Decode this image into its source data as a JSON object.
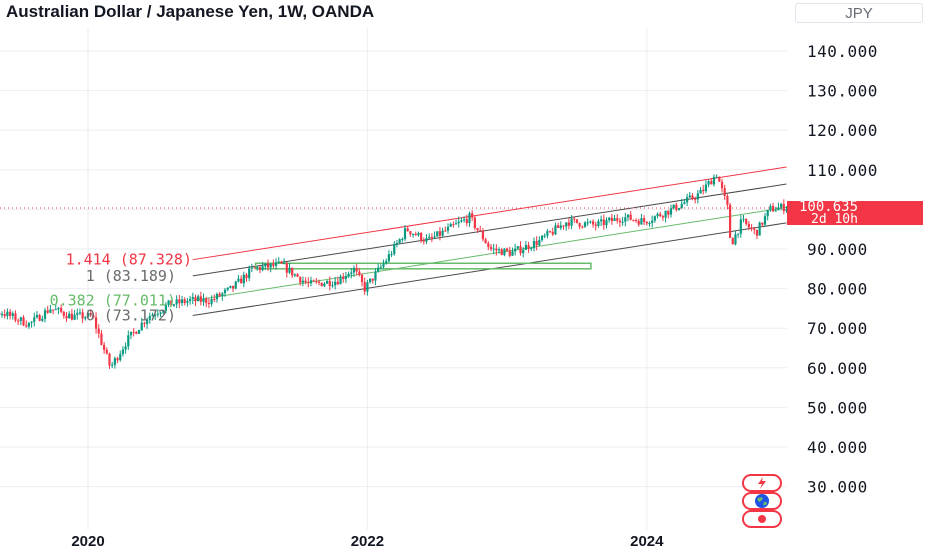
{
  "header": {
    "title": "Australian Dollar / Japanese Yen, 1W, OANDA",
    "currency": "JPY"
  },
  "price_tag": {
    "price": "100.635",
    "countdown": "2d 10h"
  },
  "colors": {
    "up": "#089981",
    "down": "#f23645",
    "channel": "#4a4a4a",
    "fib_upper": "#f23645",
    "fib_mid": "#6b6b6b",
    "fib_lower": "#66bb6a",
    "grid": "#eceef2",
    "axis_text": "#131722"
  },
  "side_icons": [
    "flash-icon",
    "earth-icon",
    "record-icon"
  ],
  "fib_labels": [
    {
      "text": "1.414 (87.328)",
      "color": "#f23645"
    },
    {
      "text": "1 (83.189)",
      "color": "#6b6b6b"
    },
    {
      "text": "0.382 (77.011)",
      "color": "#66bb6a"
    },
    {
      "text": "0 (73.172)",
      "color": "#6b6b6b"
    }
  ],
  "chart_data": {
    "type": "candlestick",
    "symbol": "AUD/JPY",
    "interval": "1W",
    "source": "OANDA",
    "y_axis": {
      "ticks": [
        "140.000",
        "130.000",
        "120.000",
        "110.000",
        "100.000",
        "90.000",
        "80.000",
        "70.000",
        "60.000",
        "50.000",
        "40.000",
        "30.000"
      ],
      "ylim": [
        25,
        148
      ]
    },
    "x_axis": {
      "ticks": [
        "2020",
        "2022",
        "2024"
      ],
      "xlim": [
        2019.0,
        2025.1
      ]
    },
    "current_price": 100.635,
    "grid": true,
    "trend_path": [
      [
        2019.0,
        76
      ],
      [
        2019.2,
        73
      ],
      [
        2019.4,
        74
      ],
      [
        2019.6,
        71
      ],
      [
        2019.75,
        75
      ],
      [
        2019.9,
        73
      ],
      [
        2020.05,
        73
      ],
      [
        2020.18,
        60
      ],
      [
        2020.3,
        67
      ],
      [
        2020.45,
        73
      ],
      [
        2020.6,
        76
      ],
      [
        2020.75,
        77
      ],
      [
        2020.9,
        77
      ],
      [
        2021.05,
        80
      ],
      [
        2021.2,
        85
      ],
      [
        2021.4,
        86
      ],
      [
        2021.6,
        81
      ],
      [
        2021.8,
        82
      ],
      [
        2021.92,
        85
      ],
      [
        2022.0,
        80
      ],
      [
        2022.15,
        87
      ],
      [
        2022.3,
        95
      ],
      [
        2022.45,
        92
      ],
      [
        2022.6,
        95
      ],
      [
        2022.75,
        98
      ],
      [
        2022.9,
        90
      ],
      [
        2023.05,
        89
      ],
      [
        2023.25,
        92
      ],
      [
        2023.45,
        97
      ],
      [
        2023.65,
        96
      ],
      [
        2023.85,
        98
      ],
      [
        2024.0,
        97
      ],
      [
        2024.2,
        100
      ],
      [
        2024.4,
        104
      ],
      [
        2024.52,
        109
      ],
      [
        2024.6,
        100
      ],
      [
        2024.62,
        91
      ],
      [
        2024.7,
        97
      ],
      [
        2024.8,
        94
      ],
      [
        2024.9,
        100
      ],
      [
        2025.0,
        100.6
      ]
    ],
    "channels": [
      {
        "name": "",
        "color": "#f23645",
        "from": [
          2020.75,
          87.3
        ],
        "to": [
          2025.0,
          110.7
        ]
      },
      {
        "name": "",
        "color": "#4a4a4a",
        "from": [
          2020.75,
          83.2
        ],
        "to": [
          2025.0,
          106.4
        ]
      },
      {
        "name": "",
        "color": "#66bb6a",
        "from": [
          2020.75,
          77.0
        ],
        "to": [
          2025.0,
          100.5
        ]
      },
      {
        "name": "",
        "color": "#4a4a4a",
        "from": [
          2020.75,
          73.2
        ],
        "to": [
          2025.0,
          96.6
        ]
      }
    ],
    "boxes": [
      {
        "color": "#66bb6a",
        "x": [
          2021.2,
          2023.6
        ],
        "y": [
          85.0,
          86.4
        ]
      }
    ]
  }
}
